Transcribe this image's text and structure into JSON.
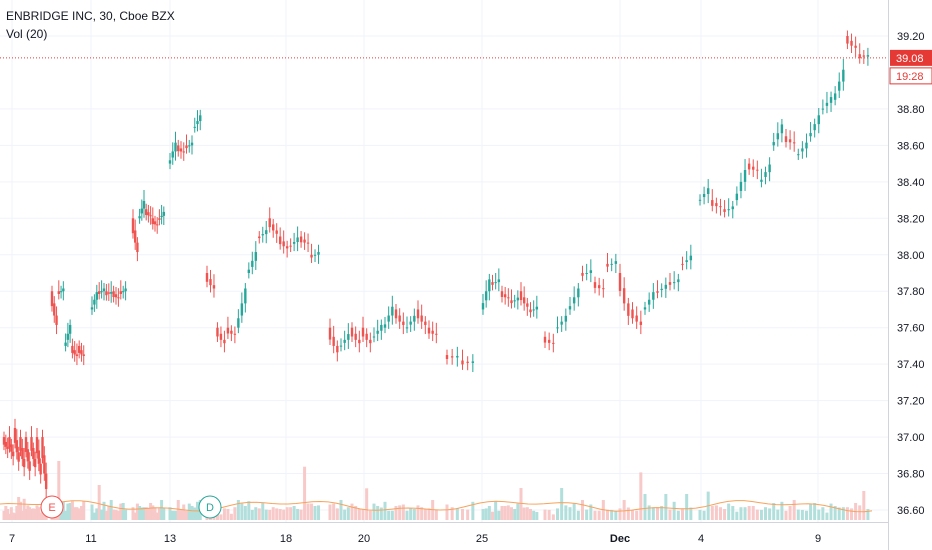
{
  "header": {
    "title": "ENBRIDGE INC, 30, Cboe BZX",
    "volume_label": "Vol (20)"
  },
  "price_axis": {
    "ticks": [
      "39.20",
      "38.80",
      "38.60",
      "38.40",
      "38.20",
      "38.00",
      "37.80",
      "37.60",
      "37.40",
      "37.20",
      "37.00",
      "36.80",
      "36.60"
    ],
    "tick_values": [
      39.2,
      38.8,
      38.6,
      38.4,
      38.2,
      38.0,
      37.8,
      37.6,
      37.4,
      37.2,
      37.0,
      36.8,
      36.6
    ],
    "last_price_label": "39.08",
    "countdown_label": "19:28"
  },
  "time_axis": {
    "labels": [
      "7",
      "11",
      "13",
      "18",
      "20",
      "25",
      "Dec",
      "4",
      "9"
    ]
  },
  "event_markers": [
    {
      "letter": "E",
      "type": "earnings"
    },
    {
      "letter": "D",
      "type": "dividend"
    }
  ],
  "colors": {
    "up": "#26a69a",
    "down": "#ef5350",
    "up_volume": "#b2dfdb",
    "down_volume": "#f7c9c8",
    "volume_ma": "#f7a35c",
    "last_price_line": "#e53935",
    "grid": "#f0f3fa",
    "axis_text": "#131722"
  },
  "chart_data": {
    "type": "candlestick",
    "title": "ENBRIDGE INC, 30, Cboe BZX",
    "ylim": [
      36.55,
      39.28
    ],
    "x_labels": [
      "7",
      "11",
      "13",
      "18",
      "20",
      "25",
      "Dec",
      "4",
      "9"
    ],
    "last_price": 39.08,
    "path_points": [
      [
        37.0,
        36.92
      ],
      [
        37.0,
        36.88
      ],
      [
        37.05,
        36.85
      ],
      [
        37.0,
        36.82
      ],
      [
        37.0,
        36.8
      ],
      [
        37.0,
        36.82
      ],
      [
        37.0,
        36.78
      ],
      [
        37.0,
        36.7
      ],
      [
        37.8,
        37.6
      ],
      [
        37.8,
        37.8
      ],
      [
        37.5,
        37.6
      ],
      [
        37.5,
        37.43
      ],
      [
        37.5,
        37.43
      ],
      [
        37.7,
        37.78
      ],
      [
        37.8,
        37.8
      ],
      [
        37.8,
        37.78
      ],
      [
        37.8,
        37.75
      ],
      [
        37.8,
        37.8
      ],
      [
        38.2,
        38.0
      ],
      [
        38.2,
        38.28
      ],
      [
        38.25,
        38.2
      ],
      [
        38.2,
        38.15
      ],
      [
        38.2,
        38.22
      ],
      [
        38.5,
        38.6
      ],
      [
        38.6,
        38.55
      ],
      [
        38.6,
        38.6
      ],
      [
        38.7,
        38.75
      ],
      [
        37.9,
        37.8
      ],
      [
        37.6,
        37.5
      ],
      [
        37.6,
        37.55
      ],
      [
        37.6,
        37.8
      ],
      [
        37.9,
        38.0
      ],
      [
        38.1,
        38.12
      ],
      [
        38.2,
        38.1
      ],
      [
        38.1,
        38.02
      ],
      [
        38.05,
        38.08
      ],
      [
        38.1,
        38.05
      ],
      [
        38.0,
        38.0
      ],
      [
        37.6,
        37.45
      ],
      [
        37.5,
        37.55
      ],
      [
        37.6,
        37.5
      ],
      [
        37.6,
        37.5
      ],
      [
        37.55,
        37.6
      ],
      [
        37.6,
        37.7
      ],
      [
        37.7,
        37.6
      ],
      [
        37.6,
        37.65
      ],
      [
        37.7,
        37.6
      ],
      [
        37.6,
        37.55
      ],
      [
        37.45,
        37.43
      ],
      [
        37.42,
        37.4
      ],
      [
        37.7,
        37.85
      ],
      [
        37.85,
        37.85
      ],
      [
        37.8,
        37.75
      ],
      [
        37.75,
        37.75
      ],
      [
        37.8,
        37.7
      ],
      [
        37.7,
        37.7
      ],
      [
        37.55,
        37.5
      ],
      [
        37.6,
        37.65
      ],
      [
        37.7,
        37.8
      ],
      [
        37.9,
        37.9
      ],
      [
        37.85,
        37.8
      ],
      [
        37.95,
        37.95
      ],
      [
        37.9,
        37.65
      ],
      [
        37.7,
        37.6
      ],
      [
        37.7,
        37.78
      ],
      [
        37.8,
        37.82
      ],
      [
        37.85,
        37.85
      ],
      [
        37.95,
        37.98
      ],
      [
        38.3,
        38.35
      ],
      [
        38.3,
        38.25
      ],
      [
        38.25,
        38.25
      ],
      [
        38.3,
        38.45
      ],
      [
        38.5,
        38.45
      ],
      [
        38.4,
        38.48
      ],
      [
        38.6,
        38.7
      ],
      [
        38.65,
        38.6
      ],
      [
        38.55,
        38.6
      ],
      [
        38.65,
        38.75
      ],
      [
        38.8,
        38.85
      ],
      [
        38.85,
        39.0
      ],
      [
        39.2,
        39.12
      ],
      [
        39.1,
        39.08
      ]
    ],
    "volume_relative": [
      0.2,
      0.25,
      0.15,
      0.1,
      0.2,
      0.15,
      0.1,
      0.2,
      0.5,
      0.3,
      0.2,
      0.4,
      0.15,
      0.3,
      0.2,
      0.25,
      0.2,
      0.15,
      0.3,
      0.2,
      0.15,
      0.2,
      0.2,
      0.3,
      0.25,
      0.15,
      0.2,
      0.95,
      0.4,
      0.3,
      0.2,
      0.3,
      0.25,
      0.4,
      0.2,
      0.3,
      0.2,
      0.2,
      0.4,
      0.25,
      0.15,
      0.2,
      0.55,
      0.2,
      0.3,
      0.2,
      0.25,
      0.3,
      0.2,
      0.15,
      0.2,
      0.3,
      0.25,
      0.2,
      0.2,
      0.15,
      0.3,
      0.2,
      0.25,
      0.2,
      0.3,
      0.2,
      0.25,
      0.3,
      0.2,
      0.15,
      0.2,
      0.3,
      0.25,
      0.2,
      0.2,
      0.15,
      0.3,
      0.2,
      0.25,
      0.2,
      0.3,
      0.2,
      0.25,
      0.3,
      0.5,
      0.25
    ]
  }
}
